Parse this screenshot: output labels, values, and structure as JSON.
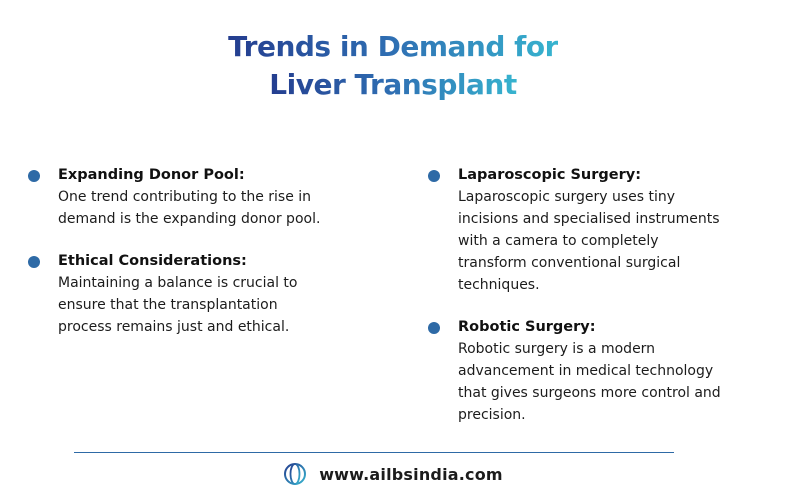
{
  "title": {
    "line1": "Trends in Demand for",
    "line2": "Liver Transplant"
  },
  "left_items": [
    {
      "heading": "Expanding Donor Pool:",
      "lines": [
        "One trend contributing to the rise in",
        "demand is the expanding donor pool."
      ]
    },
    {
      "heading": "Ethical Considerations:",
      "lines": [
        "Maintaining a balance is crucial to",
        "ensure that the transplantation",
        "process remains just and ethical."
      ]
    }
  ],
  "right_items": [
    {
      "heading": "Laparoscopic Surgery:",
      "lines": [
        "Laparoscopic surgery uses tiny",
        "incisions and specialised instruments",
        "with a camera to completely",
        "transform conventional surgical",
        "techniques."
      ]
    },
    {
      "heading": "Robotic Surgery:",
      "lines": [
        "Robotic surgery is a modern",
        "advancement in medical technology",
        "that gives surgeons more control and",
        "precision."
      ]
    }
  ],
  "footer": {
    "icon": "globe-icon",
    "url": "www.ailbsindia.com"
  },
  "colors": {
    "title_start": "#243d8f",
    "title_end": "#37b4cf",
    "bullet": "#2e6aa6",
    "divider": "#2e6aa6"
  }
}
